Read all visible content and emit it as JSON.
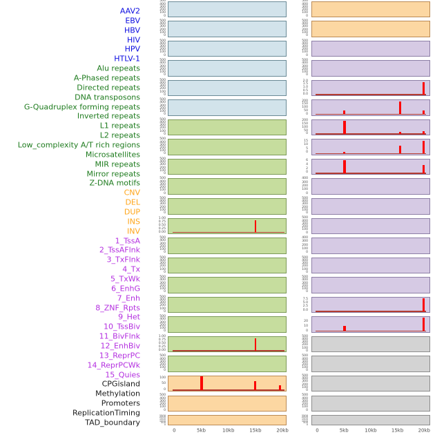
{
  "chart_data": {
    "type": "genome-track-grid",
    "x_unit": "kb",
    "x_range": [
      0,
      20
    ],
    "xaxis": {
      "labels": [
        "0",
        "5kb",
        "10kb",
        "15kb",
        "20kb"
      ],
      "kb": [
        0,
        5,
        10,
        15,
        20
      ]
    },
    "colors": {
      "label": {
        "virus": "#0a0ae0",
        "repeat": "#1e7b1e",
        "sv": "#ffa519",
        "chromatin": "#b42fe0",
        "other": "#1a1a1a"
      },
      "bg": {
        "virus": "#d2e3eb",
        "repeat": "#c6dd9e",
        "sv": "#fcd7a2",
        "chromatin": "#d6cae4",
        "other": "#d3d3d3"
      },
      "border": {
        "virus": "#6a8a96",
        "repeat": "#7c9a58",
        "sv": "#bb8a55",
        "chromatin": "#8d7fa6",
        "other": "#8c8c8c"
      },
      "spike": "#fb0505",
      "baseline": "#b43c32",
      "tick_text": "#4d4d4d",
      "axis_text": "#4a4a4a"
    },
    "columns": [
      {
        "panels": [
          {
            "label": "AAV2",
            "group": "virus",
            "ticks": [
              "500",
              "400",
              "300",
              "200",
              "100",
              "0"
            ],
            "baseline": false,
            "spikes": []
          },
          {
            "label": "EBV",
            "group": "virus",
            "ticks": [
              "500",
              "400",
              "300",
              "200",
              "100",
              "0"
            ],
            "baseline": false,
            "spikes": []
          },
          {
            "label": "HBV",
            "group": "virus",
            "ticks": [
              "500",
              "400",
              "300",
              "200",
              "100",
              "0"
            ],
            "baseline": false,
            "spikes": []
          },
          {
            "label": "HIV",
            "group": "virus",
            "ticks": [
              "500",
              "400",
              "300",
              "200",
              "100",
              "0"
            ],
            "baseline": false,
            "spikes": []
          },
          {
            "label": "HPV",
            "group": "virus",
            "ticks": [
              "500",
              "400",
              "300",
              "200",
              "100",
              "0"
            ],
            "baseline": false,
            "spikes": []
          },
          {
            "label": "HTLV-1",
            "group": "virus",
            "ticks": [
              "500",
              "400",
              "300",
              "200",
              "100",
              "0"
            ],
            "baseline": false,
            "spikes": []
          },
          {
            "label": "Alu repeats",
            "group": "repeat",
            "ticks": [
              "500",
              "400",
              "300",
              "200",
              "100",
              "0"
            ],
            "baseline": false,
            "spikes": []
          },
          {
            "label": "A-Phased repeats",
            "group": "repeat",
            "ticks": [
              "500",
              "400",
              "300",
              "200",
              "100",
              "0"
            ],
            "baseline": false,
            "spikes": []
          },
          {
            "label": "Directed repeats",
            "group": "repeat",
            "ticks": [
              "500",
              "400",
              "300",
              "200",
              "100",
              "0"
            ],
            "baseline": false,
            "spikes": []
          },
          {
            "label": "DNA transposons",
            "group": "repeat",
            "ticks": [
              "500",
              "400",
              "300",
              "200",
              "100",
              "0"
            ],
            "baseline": false,
            "spikes": []
          },
          {
            "label": "G-Quadruplex forming repeats",
            "group": "repeat",
            "ticks": [
              "500",
              "400",
              "300",
              "200",
              "100",
              "0"
            ],
            "baseline": false,
            "spikes": []
          },
          {
            "label": "Inverted repeats",
            "group": "repeat",
            "ticks": [
              "1.00",
              "0.75",
              "0.50",
              "0.25",
              "0.00"
            ],
            "tick_span": [
              0.06,
              0.9
            ],
            "baseline": true,
            "spikes": [
              {
                "kb": 15,
                "h": 0.9,
                "w": 2.5
              }
            ]
          },
          {
            "label": "L1 repeats",
            "group": "repeat",
            "ticks": [
              "500",
              "400",
              "300",
              "200",
              "100",
              "0"
            ],
            "baseline": false,
            "spikes": []
          },
          {
            "label": "L2 repeats",
            "group": "repeat",
            "ticks": [
              "500",
              "400",
              "300",
              "200",
              "100",
              "0"
            ],
            "baseline": false,
            "spikes": []
          },
          {
            "label": "Low_complexity A/T rich regions",
            "group": "repeat",
            "ticks": [
              "500",
              "400",
              "300",
              "200",
              "100",
              "0"
            ],
            "baseline": false,
            "spikes": []
          },
          {
            "label": "Microsatellites",
            "group": "repeat",
            "ticks": [
              "500",
              "400",
              "300",
              "200",
              "100",
              "0"
            ],
            "baseline": false,
            "spikes": []
          },
          {
            "label": "MIR repeats",
            "group": "repeat",
            "ticks": [
              "500",
              "400",
              "300",
              "200",
              "100",
              "0"
            ],
            "baseline": false,
            "spikes": []
          },
          {
            "label": "Mirror repeats",
            "group": "repeat",
            "ticks": [
              "1.00",
              "0.75",
              "0.50",
              "0.25",
              "0.00"
            ],
            "tick_span": [
              0.06,
              0.9
            ],
            "baseline": true,
            "spikes": [
              {
                "kb": 15,
                "h": 0.9,
                "w": 2.5
              }
            ]
          },
          {
            "label": "Z-DNA motifs",
            "group": "repeat",
            "ticks": [
              "500",
              "400",
              "300",
              "200",
              "100",
              "0"
            ],
            "baseline": false,
            "spikes": []
          },
          {
            "label": "CNV",
            "group": "sv",
            "ticks": [
              "100",
              "50",
              "0"
            ],
            "tick_span": [
              0.16,
              0.9
            ],
            "baseline": true,
            "spikes": [
              {
                "kb": 5.05,
                "h": 1.0,
                "w": 4
              },
              {
                "kb": 15,
                "h": 0.65,
                "w": 3
              },
              {
                "kb": 19.5,
                "h": 0.38,
                "w": 3
              }
            ]
          },
          {
            "label": "DEL",
            "group": "sv",
            "ticks": [
              "500",
              "400",
              "300",
              "200",
              "100",
              "0"
            ],
            "baseline": false,
            "spikes": []
          },
          {
            "label": "DUP",
            "group": "sv",
            "ticks": [
              "2500",
              "2000",
              "1500",
              "1000",
              "500",
              "0"
            ],
            "baseline": false,
            "spikes": []
          }
        ]
      },
      {
        "panels": [
          {
            "label": "INS",
            "group": "sv",
            "ticks": [
              "500",
              "400",
              "300",
              "200",
              "100",
              "0"
            ],
            "baseline": false,
            "spikes": []
          },
          {
            "label": "INV",
            "group": "sv",
            "ticks": [
              "500",
              "400",
              "300",
              "200",
              "100",
              "0"
            ],
            "baseline": false,
            "spikes": []
          },
          {
            "label": "1_TssA",
            "group": "chromatin",
            "ticks": [
              "500",
              "400",
              "300",
              "200",
              "100",
              "0"
            ],
            "baseline": false,
            "spikes": []
          },
          {
            "label": "2_TssAFlnk",
            "group": "chromatin",
            "ticks": [
              "500",
              "400",
              "300",
              "200",
              "100",
              "0"
            ],
            "baseline": false,
            "spikes": []
          },
          {
            "label": "3_TxFlnk",
            "group": "chromatin",
            "ticks": [
              "2.0",
              "1.5",
              "1.0",
              "0.5",
              "0.0"
            ],
            "tick_span": [
              0.08,
              0.9
            ],
            "baseline": true,
            "spikes": [
              {
                "kb": 19.9,
                "h": 0.93,
                "w": 3
              }
            ]
          },
          {
            "label": "4_Tx",
            "group": "chromatin",
            "ticks": [
              "200",
              "150",
              "100",
              "50",
              "0"
            ],
            "tick_span": [
              0.1,
              0.92
            ],
            "baseline": true,
            "spikes": [
              {
                "kb": 5.1,
                "h": 0.26,
                "w": 3
              },
              {
                "kb": 15.5,
                "h": 0.95,
                "w": 3
              },
              {
                "kb": 19.9,
                "h": 0.26,
                "w": 3
              }
            ]
          },
          {
            "label": "5_TxWk",
            "group": "chromatin",
            "ticks": [
              "200",
              "150",
              "100",
              "50",
              "0"
            ],
            "tick_span": [
              0.1,
              0.92
            ],
            "baseline": true,
            "spikes": [
              {
                "kb": 5.1,
                "h": 0.95,
                "w": 4
              },
              {
                "kb": 15.5,
                "h": 0.13,
                "w": 3
              },
              {
                "kb": 19.9,
                "h": 0.22,
                "w": 3
              }
            ]
          },
          {
            "label": "6_EnhG",
            "group": "chromatin",
            "ticks": [
              "15",
              "10",
              "5",
              "0"
            ],
            "tick_span": [
              0.15,
              0.85
            ],
            "baseline": true,
            "spikes": [
              {
                "kb": 5.1,
                "h": 0.1,
                "w": 3
              },
              {
                "kb": 15.5,
                "h": 0.6,
                "w": 3
              },
              {
                "kb": 19.9,
                "h": 0.95,
                "w": 3
              }
            ]
          },
          {
            "label": "7_Enh",
            "group": "chromatin",
            "ticks": [
              "6",
              "4",
              "2",
              "0"
            ],
            "tick_span": [
              0.15,
              0.86
            ],
            "baseline": true,
            "spikes": [
              {
                "kb": 5.1,
                "h": 0.95,
                "w": 4
              },
              {
                "kb": 19.9,
                "h": 0.63,
                "w": 3
              }
            ]
          },
          {
            "label": "8_ZNF_Rpts",
            "group": "chromatin",
            "ticks": [
              "400",
              "300",
              "200",
              "100",
              "0"
            ],
            "baseline": false,
            "spikes": []
          },
          {
            "label": "9_Het",
            "group": "chromatin",
            "ticks": [
              "500",
              "400",
              "300",
              "200",
              "100",
              "0"
            ],
            "baseline": false,
            "spikes": []
          },
          {
            "label": "10_TssBiv",
            "group": "chromatin",
            "ticks": [
              "500",
              "400",
              "300",
              "200",
              "100",
              "0"
            ],
            "baseline": false,
            "spikes": []
          },
          {
            "label": "11_BivFlnk",
            "group": "chromatin",
            "ticks": [
              "400",
              "300",
              "200",
              "100",
              "0"
            ],
            "baseline": false,
            "spikes": []
          },
          {
            "label": "12_EnhBiv",
            "group": "chromatin",
            "ticks": [
              "500",
              "400",
              "300",
              "200",
              "100",
              "0"
            ],
            "baseline": false,
            "spikes": []
          },
          {
            "label": "13_ReprPC",
            "group": "chromatin",
            "ticks": [
              "500",
              "400",
              "300",
              "200",
              "100",
              "0"
            ],
            "baseline": false,
            "spikes": []
          },
          {
            "label": "14_ReprPCWk",
            "group": "chromatin",
            "ticks": [
              "7.5",
              "5.0",
              "2.5",
              "0.0"
            ],
            "tick_span": [
              0.16,
              0.86
            ],
            "baseline": true,
            "spikes": [
              {
                "kb": 19.9,
                "h": 0.95,
                "w": 3
              }
            ]
          },
          {
            "label": "15_Quies",
            "group": "chromatin",
            "ticks": [
              "20",
              "10",
              "0"
            ],
            "tick_span": [
              0.33,
              0.94
            ],
            "baseline": true,
            "spikes": [
              {
                "kb": 5.1,
                "h": 0.4,
                "w": 3.5
              },
              {
                "kb": 19.9,
                "h": 0.97,
                "w": 3
              }
            ]
          },
          {
            "label": "CPGisland",
            "group": "other",
            "ticks": [
              "500",
              "400",
              "300",
              "200",
              "100",
              "0"
            ],
            "baseline": false,
            "spikes": []
          },
          {
            "label": "Methylation",
            "group": "other",
            "ticks": [
              "500",
              "400",
              "300",
              "200",
              "100",
              "0"
            ],
            "baseline": false,
            "spikes": []
          },
          {
            "label": "Promoters",
            "group": "other",
            "ticks": [
              "500",
              "400",
              "300",
              "200",
              "100",
              "0"
            ],
            "baseline": false,
            "spikes": []
          },
          {
            "label": "ReplicationTiming",
            "group": "other",
            "ticks": [
              "500",
              "400",
              "300",
              "200",
              "100",
              "0"
            ],
            "baseline": false,
            "spikes": []
          },
          {
            "label": "TAD_boundary",
            "group": "other",
            "ticks": [
              "2500",
              "2000",
              "1500",
              "1000",
              "500",
              "0"
            ],
            "baseline": false,
            "spikes": []
          }
        ]
      }
    ]
  }
}
